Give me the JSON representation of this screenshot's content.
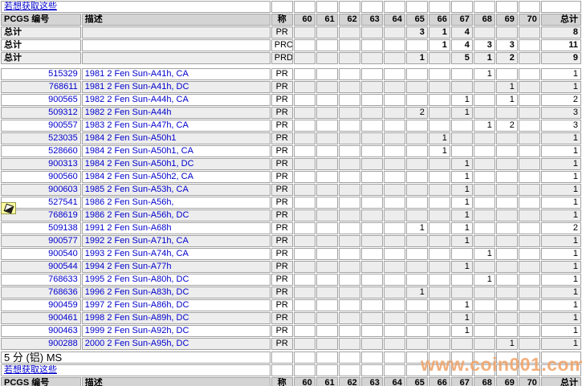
{
  "page": {
    "promo_link": "若想获取这些",
    "section2_title": "5 分 (铝) MS",
    "watermark": "www.coin001.com"
  },
  "colors": {
    "link_blue": "#0000cc",
    "watermark_orange": "#f0a266",
    "header_bg": "#d4d4d4",
    "alt_row_bg": "#ededed",
    "grid_border": "#a3a3a3",
    "marker_yellow": "#ffffa0"
  },
  "table": {
    "headers": {
      "id": "PCGS 编号",
      "desc": "描述",
      "designation": "称",
      "grades": [
        "60",
        "61",
        "62",
        "63",
        "64",
        "65",
        "66",
        "67",
        "68",
        "69",
        "70"
      ],
      "total": "总计"
    },
    "totals_label": "总计",
    "summary": [
      {
        "designation": "PR",
        "counts": [
          "",
          "",
          "",
          "",
          "",
          "3",
          "1",
          "4",
          "",
          "",
          ""
        ],
        "total": "8"
      },
      {
        "designation": "PRC",
        "counts": [
          "",
          "",
          "",
          "",
          "",
          "",
          "1",
          "4",
          "3",
          "3",
          ""
        ],
        "total": "11"
      },
      {
        "designation": "PRD",
        "counts": [
          "",
          "",
          "",
          "",
          "",
          "1",
          "",
          "5",
          "1",
          "2",
          ""
        ],
        "total": "9"
      }
    ],
    "rows": [
      {
        "id": "515329",
        "desc": "1981 2 Fen Sun-A41h, CA",
        "designation": "PR",
        "counts": [
          "",
          "",
          "",
          "",
          "",
          "",
          "",
          "",
          "1",
          "",
          ""
        ],
        "total": "1"
      },
      {
        "id": "768611",
        "desc": "1981 2 Fen Sun-A41h, DC",
        "designation": "PR",
        "counts": [
          "",
          "",
          "",
          "",
          "",
          "",
          "",
          "",
          "",
          "1",
          ""
        ],
        "total": "1"
      },
      {
        "id": "900565",
        "desc": "1982 2 Fen Sun-A44h, CA",
        "designation": "PR",
        "counts": [
          "",
          "",
          "",
          "",
          "",
          "",
          "",
          "1",
          "",
          "1",
          ""
        ],
        "total": "2"
      },
      {
        "id": "509312",
        "desc": "1982 2 Fen Sun-A44h",
        "designation": "PR",
        "counts": [
          "",
          "",
          "",
          "",
          "",
          "2",
          "",
          "1",
          "",
          "",
          ""
        ],
        "total": "3"
      },
      {
        "id": "900557",
        "desc": "1983 2 Fen Sun-A47h, CA",
        "designation": "PR",
        "counts": [
          "",
          "",
          "",
          "",
          "",
          "",
          "",
          "",
          "1",
          "2",
          ""
        ],
        "total": "3"
      },
      {
        "id": "523035",
        "desc": "1984 2 Fen Sun-A50h1",
        "designation": "PR",
        "counts": [
          "",
          "",
          "",
          "",
          "",
          "",
          "1",
          "",
          "",
          "",
          ""
        ],
        "total": "1"
      },
      {
        "id": "528660",
        "desc": "1984 2 Fen Sun-A50h1, CA",
        "designation": "PR",
        "counts": [
          "",
          "",
          "",
          "",
          "",
          "",
          "1",
          "",
          "",
          "",
          ""
        ],
        "total": "1"
      },
      {
        "id": "900313",
        "desc": "1984 2 Fen Sun-A50h1, DC",
        "designation": "PR",
        "counts": [
          "",
          "",
          "",
          "",
          "",
          "",
          "",
          "1",
          "",
          "",
          ""
        ],
        "total": "1"
      },
      {
        "id": "900560",
        "desc": "1984 2 Fen Sun-A50h2, CA",
        "designation": "PR",
        "counts": [
          "",
          "",
          "",
          "",
          "",
          "",
          "",
          "1",
          "",
          "",
          ""
        ],
        "total": "1"
      },
      {
        "id": "900603",
        "desc": "1985 2 Fen Sun-A53h, CA",
        "designation": "PR",
        "counts": [
          "",
          "",
          "",
          "",
          "",
          "",
          "",
          "1",
          "",
          "",
          ""
        ],
        "total": "1"
      },
      {
        "id": "527541",
        "desc": "1986 2 Fen Sun-A56h,",
        "designation": "PR",
        "counts": [
          "",
          "",
          "",
          "",
          "",
          "",
          "",
          "1",
          "",
          "",
          ""
        ],
        "total": "1"
      },
      {
        "id": "768619",
        "desc": "1986 2 Fen Sun-A56h, DC",
        "designation": "PR",
        "counts": [
          "",
          "",
          "",
          "",
          "",
          "",
          "",
          "1",
          "",
          "",
          ""
        ],
        "total": "1"
      },
      {
        "id": "509138",
        "desc": "1991 2 Fen Sun-A68h",
        "designation": "PR",
        "counts": [
          "",
          "",
          "",
          "",
          "",
          "1",
          "",
          "1",
          "",
          "",
          ""
        ],
        "total": "2"
      },
      {
        "id": "900577",
        "desc": "1992 2 Fen Sun-A71h, CA",
        "designation": "PR",
        "counts": [
          "",
          "",
          "",
          "",
          "",
          "",
          "",
          "1",
          "",
          "",
          ""
        ],
        "total": "1"
      },
      {
        "id": "900540",
        "desc": "1993 2 Fen Sun-A74h, CA",
        "designation": "PR",
        "counts": [
          "",
          "",
          "",
          "",
          "",
          "",
          "",
          "",
          "1",
          "",
          ""
        ],
        "total": "1"
      },
      {
        "id": "900544",
        "desc": "1994 2 Fen Sun-A77h",
        "designation": "PR",
        "counts": [
          "",
          "",
          "",
          "",
          "",
          "",
          "",
          "1",
          "",
          "",
          ""
        ],
        "total": "1"
      },
      {
        "id": "768633",
        "desc": "1995 2 Fen Sun-A80h, DC",
        "designation": "PR",
        "counts": [
          "",
          "",
          "",
          "",
          "",
          "",
          "",
          "",
          "1",
          "",
          ""
        ],
        "total": "1"
      },
      {
        "id": "768636",
        "desc": "1996 2 Fen Sun-A83h, DC",
        "designation": "PR",
        "counts": [
          "",
          "",
          "",
          "",
          "",
          "1",
          "",
          "",
          "",
          "",
          ""
        ],
        "total": "1"
      },
      {
        "id": "900459",
        "desc": "1997 2 Fen Sun-A86h, DC",
        "designation": "PR",
        "counts": [
          "",
          "",
          "",
          "",
          "",
          "",
          "",
          "1",
          "",
          "",
          ""
        ],
        "total": "1"
      },
      {
        "id": "900461",
        "desc": "1998 2 Fen Sun-A89h, DC",
        "designation": "PR",
        "counts": [
          "",
          "",
          "",
          "",
          "",
          "",
          "",
          "1",
          "",
          "",
          ""
        ],
        "total": "1"
      },
      {
        "id": "900463",
        "desc": "1999 2 Fen Sun-A92h, DC",
        "designation": "PR",
        "counts": [
          "",
          "",
          "",
          "",
          "",
          "",
          "",
          "1",
          "",
          "",
          ""
        ],
        "total": "1"
      },
      {
        "id": "900288",
        "desc": "2000 2 Fen Sun-A95h, DC",
        "designation": "PR",
        "counts": [
          "",
          "",
          "",
          "",
          "",
          "",
          "",
          "",
          "",
          "1",
          ""
        ],
        "total": "1"
      }
    ]
  }
}
